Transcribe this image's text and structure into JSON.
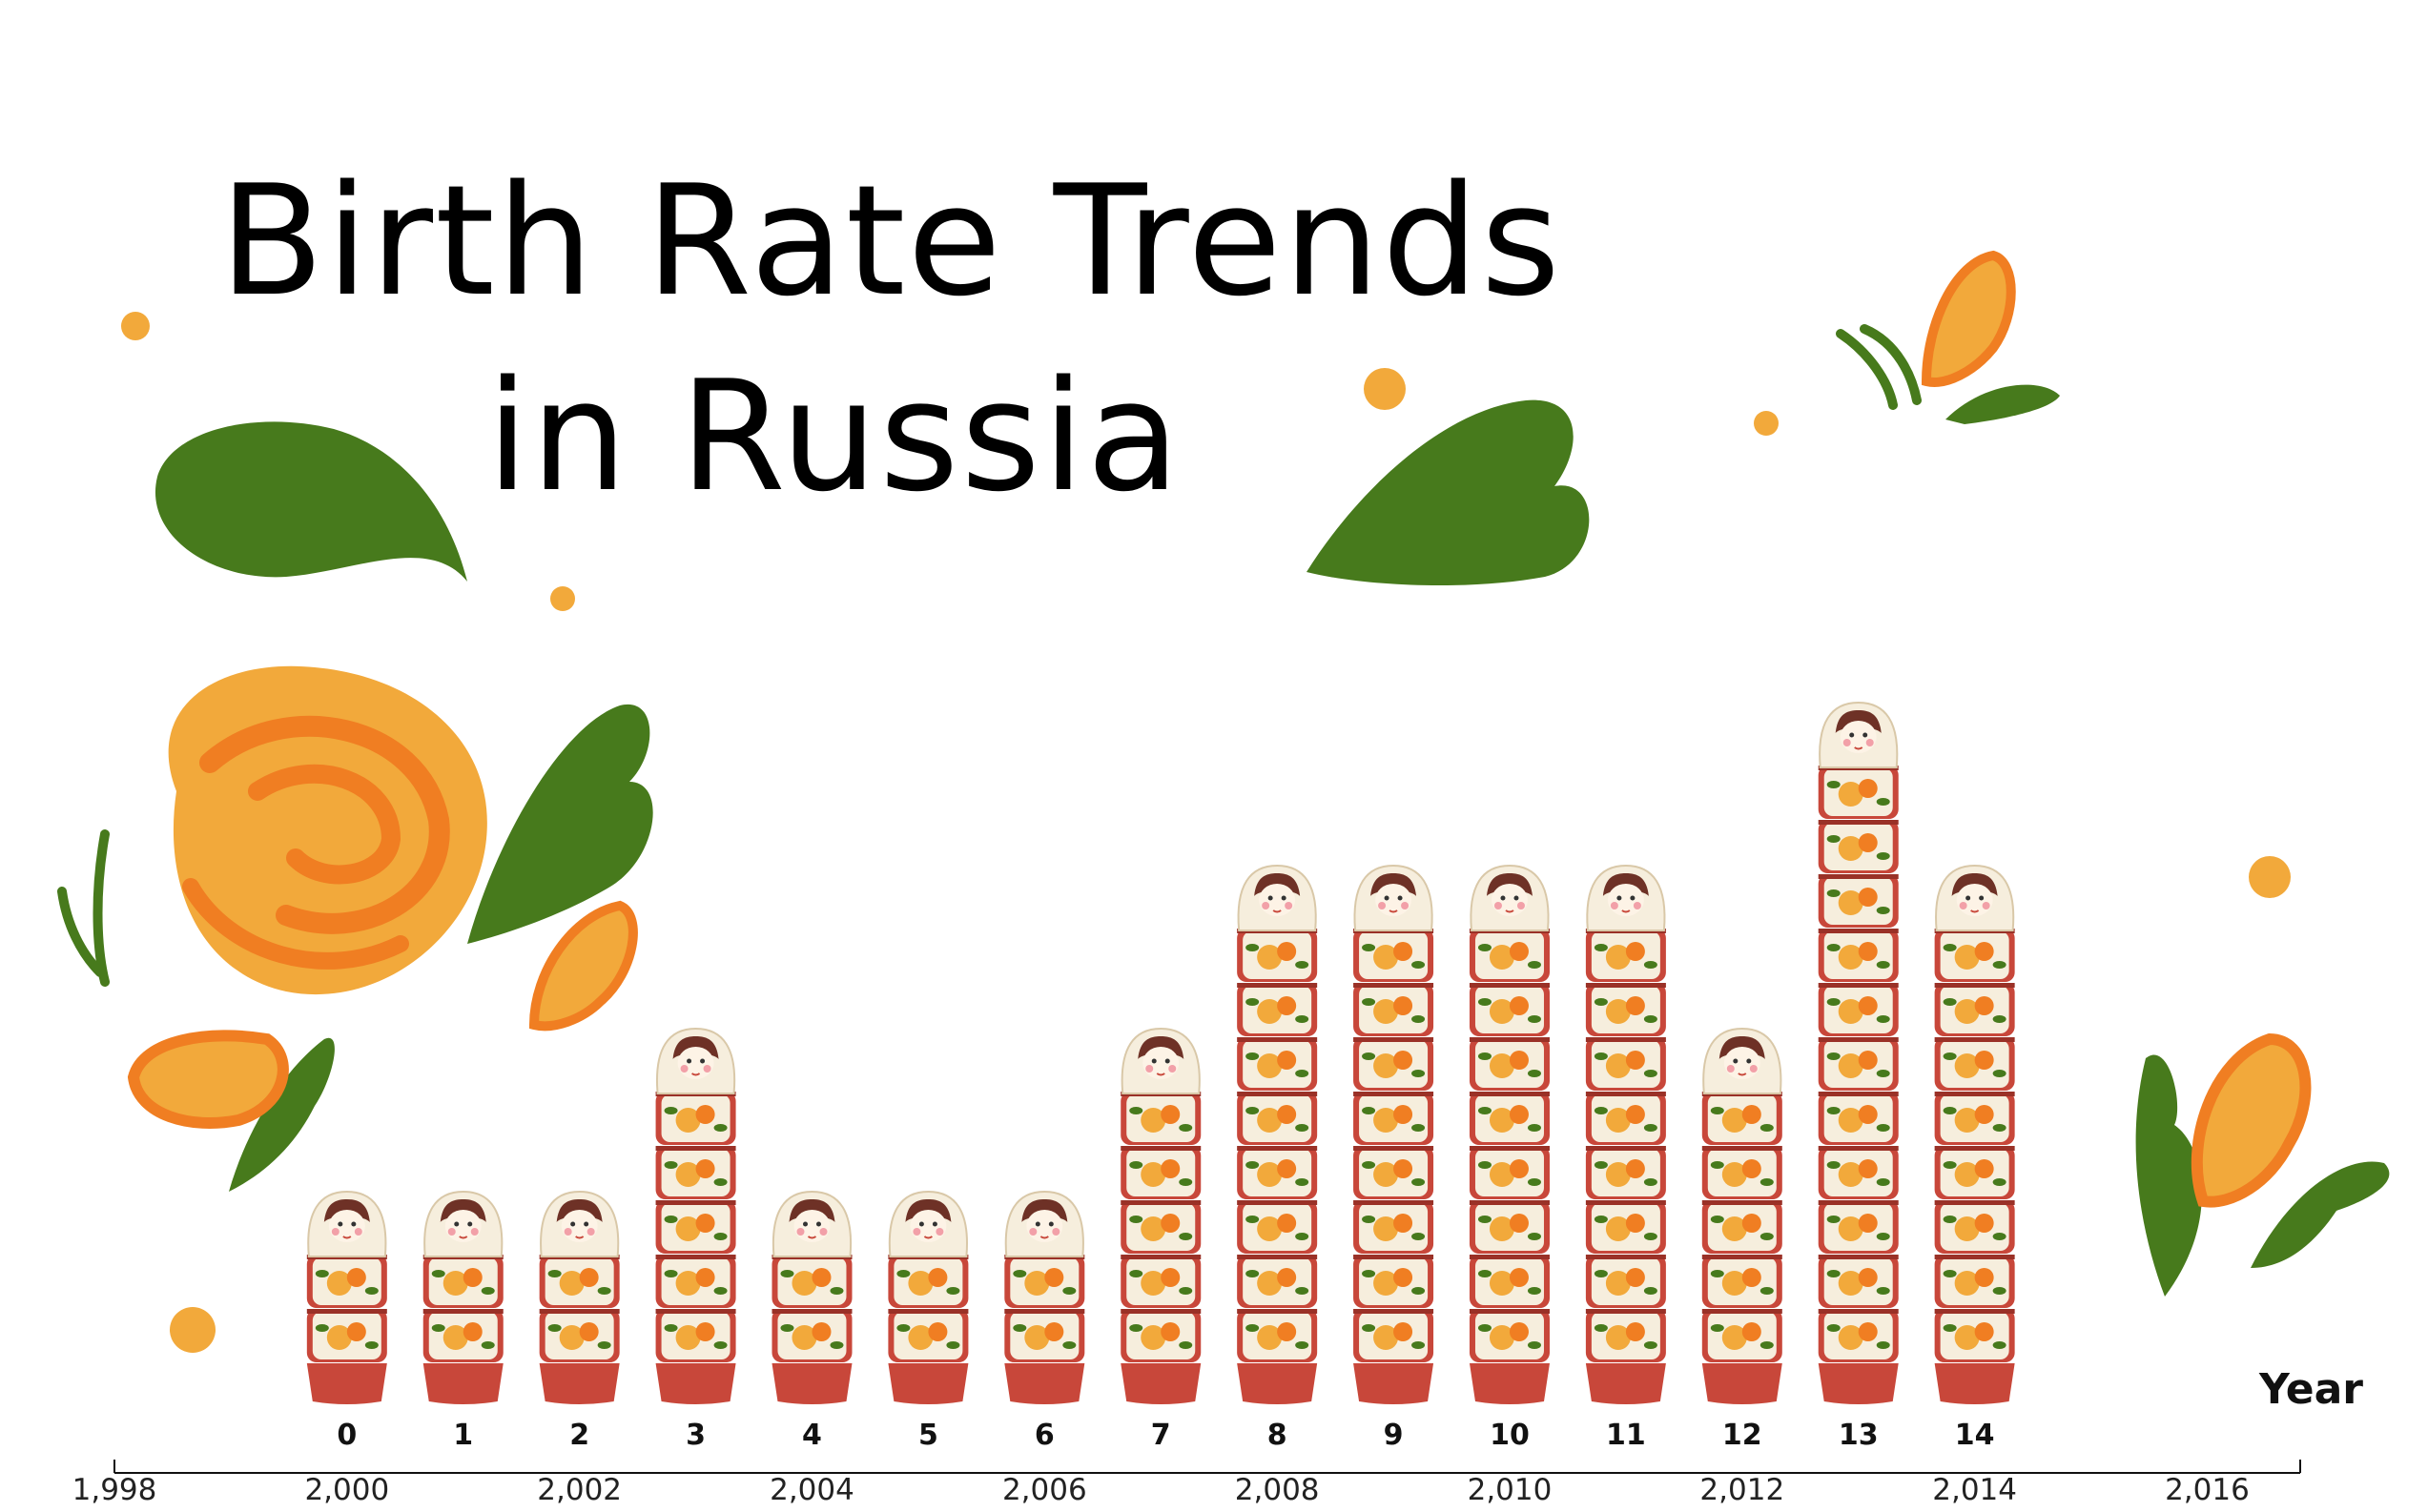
{
  "colors": {
    "leaf": "#477a1c",
    "petal_light": "#f2a93b",
    "petal_dark": "#f07e22",
    "doll_red": "#c8473a",
    "doll_cream": "#f6eedd",
    "doll_hair": "#6e3126"
  },
  "icons": {
    "mark": "matryoshka-doll-icon",
    "decorations": [
      "flower-icon",
      "leaf-icon",
      "dot-icon"
    ]
  },
  "chart_data": {
    "type": "bar",
    "style": "pictograph",
    "title": "Birth Rate Trends in Russia",
    "title_lines": [
      "Birth Rate Trends",
      "in Russia"
    ],
    "xlabel": "Year",
    "ylabel": "",
    "categories": [
      "0",
      "1",
      "2",
      "3",
      "4",
      "5",
      "6",
      "7",
      "8",
      "9",
      "10",
      "11",
      "12",
      "13",
      "14"
    ],
    "x": [
      2000,
      2001,
      2002,
      2003,
      2004,
      2005,
      2006,
      2007,
      2008,
      2009,
      2010,
      2011,
      2012,
      2013,
      2014
    ],
    "values": [
      4,
      4,
      4,
      8,
      4,
      4,
      4,
      8,
      12,
      12,
      12,
      12,
      8,
      16,
      12
    ],
    "xlim": [
      1998,
      2016.8
    ],
    "xticks": [
      1998,
      2000,
      2002,
      2004,
      2006,
      2008,
      2010,
      2012,
      2014,
      2016
    ],
    "xtick_labels": [
      "1,998",
      "2,000",
      "2,002",
      "2,004",
      "2,006",
      "2,008",
      "2,010",
      "2,012",
      "2,014",
      "2,016"
    ],
    "grid": false,
    "legend": "none"
  }
}
